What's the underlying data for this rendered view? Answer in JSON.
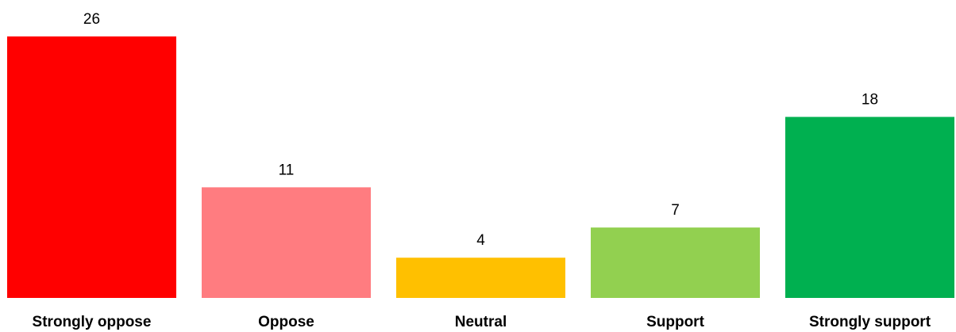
{
  "chart_data": {
    "type": "bar",
    "categories": [
      "Strongly oppose",
      "Oppose",
      "Neutral",
      "Support",
      "Strongly support"
    ],
    "values": [
      26,
      11,
      4,
      7,
      18
    ],
    "colors": [
      "#FF0000",
      "#FF7C80",
      "#FFC000",
      "#92D050",
      "#00B050"
    ],
    "title": "",
    "xlabel": "",
    "ylabel": "",
    "ylim": [
      0,
      26
    ],
    "grid": false,
    "legend": "none"
  }
}
